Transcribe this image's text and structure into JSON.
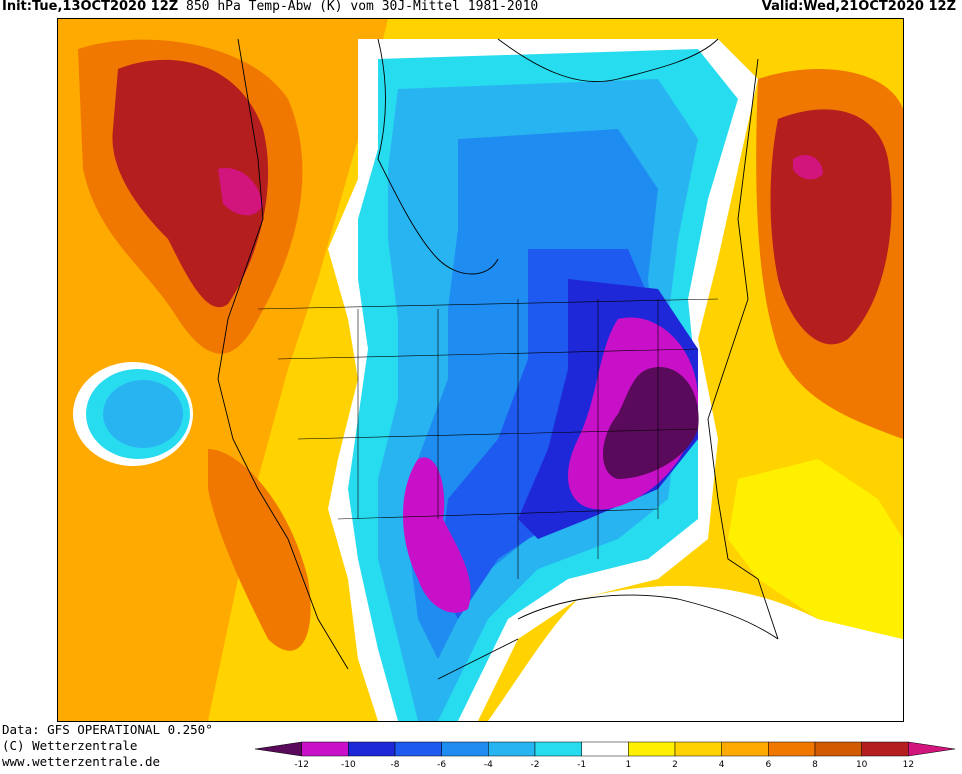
{
  "header": {
    "init_label": "Init:",
    "init_value": "Tue,13OCT2020 12Z",
    "title": "850 hPa Temp-Abw (K) vom 30J-Mittel 1981-2010",
    "valid_label": "Valid:",
    "valid_value": "Wed,21OCT2020 12Z"
  },
  "footer": {
    "data_source": "Data: GFS OPERATIONAL 0.250°",
    "copyright": "(C) Wetterzentrale",
    "website": "www.wetterzentrale.de"
  },
  "colorbar": {
    "ticks": [
      "-12",
      "-10",
      "-8",
      "-6",
      "-4",
      "-2",
      "-1",
      "1",
      "2",
      "4",
      "6",
      "8",
      "10",
      "12"
    ],
    "colors": [
      "#5a0a5a",
      "#c810c8",
      "#1e28d8",
      "#1e5af0",
      "#1e8cf0",
      "#28b4f0",
      "#28dcf0",
      "#ffffff",
      "#fff000",
      "#ffd200",
      "#ffaa00",
      "#f07800",
      "#d25a00",
      "#b41e1e",
      "#d2147d"
    ]
  },
  "map": {
    "field": "850 hPa temperature anomaly",
    "region": "North America",
    "anomaly_cold_center": "Great Lakes / Ohio Valley",
    "anomaly_warm_centers": [
      "Pacific Northwest / Western Canada",
      "Eastern Canada / Quebec"
    ]
  }
}
